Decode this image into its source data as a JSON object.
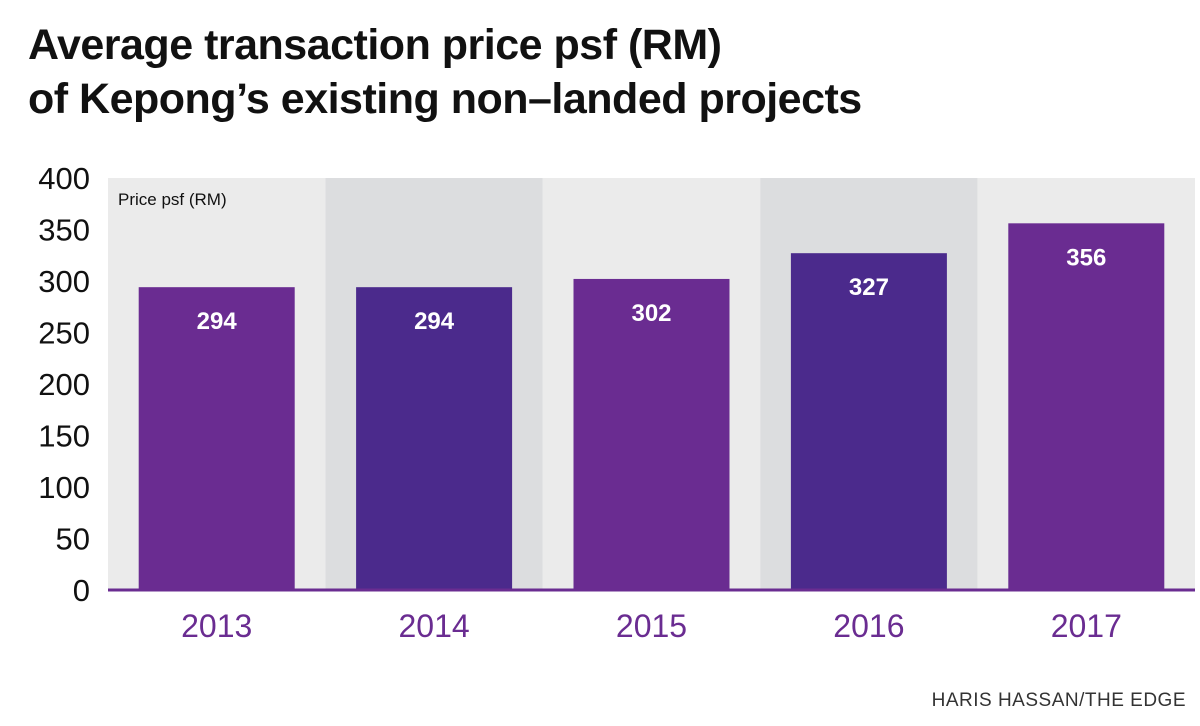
{
  "title_line1": "Average transaction price psf (RM)",
  "title_line2": "of Kepong’s existing non–landed projects",
  "credit": "HARIS HASSAN/THE EDGE",
  "chart_data": {
    "type": "bar",
    "title": "Average transaction price psf (RM) of Kepong’s existing non–landed projects",
    "ylabel": "Price psf (RM)",
    "xlabel": "",
    "categories": [
      "2013",
      "2014",
      "2015",
      "2016",
      "2017"
    ],
    "values": [
      294,
      294,
      302,
      327,
      356
    ],
    "ylim": [
      0,
      400
    ],
    "yticks": [
      0,
      50,
      100,
      150,
      200,
      250,
      300,
      350,
      400
    ],
    "bar_colors": [
      "#6a2c91",
      "#4b2a8c",
      "#6a2c91",
      "#4b2a8c",
      "#6a2c91"
    ],
    "band_colors": [
      "#ebebeb",
      "#dcdddf"
    ],
    "axis_color": "#6a2c91",
    "tick_label_color": "#6a2c91",
    "data_label_color": "#ffffff",
    "grid": false,
    "legend": "none"
  }
}
